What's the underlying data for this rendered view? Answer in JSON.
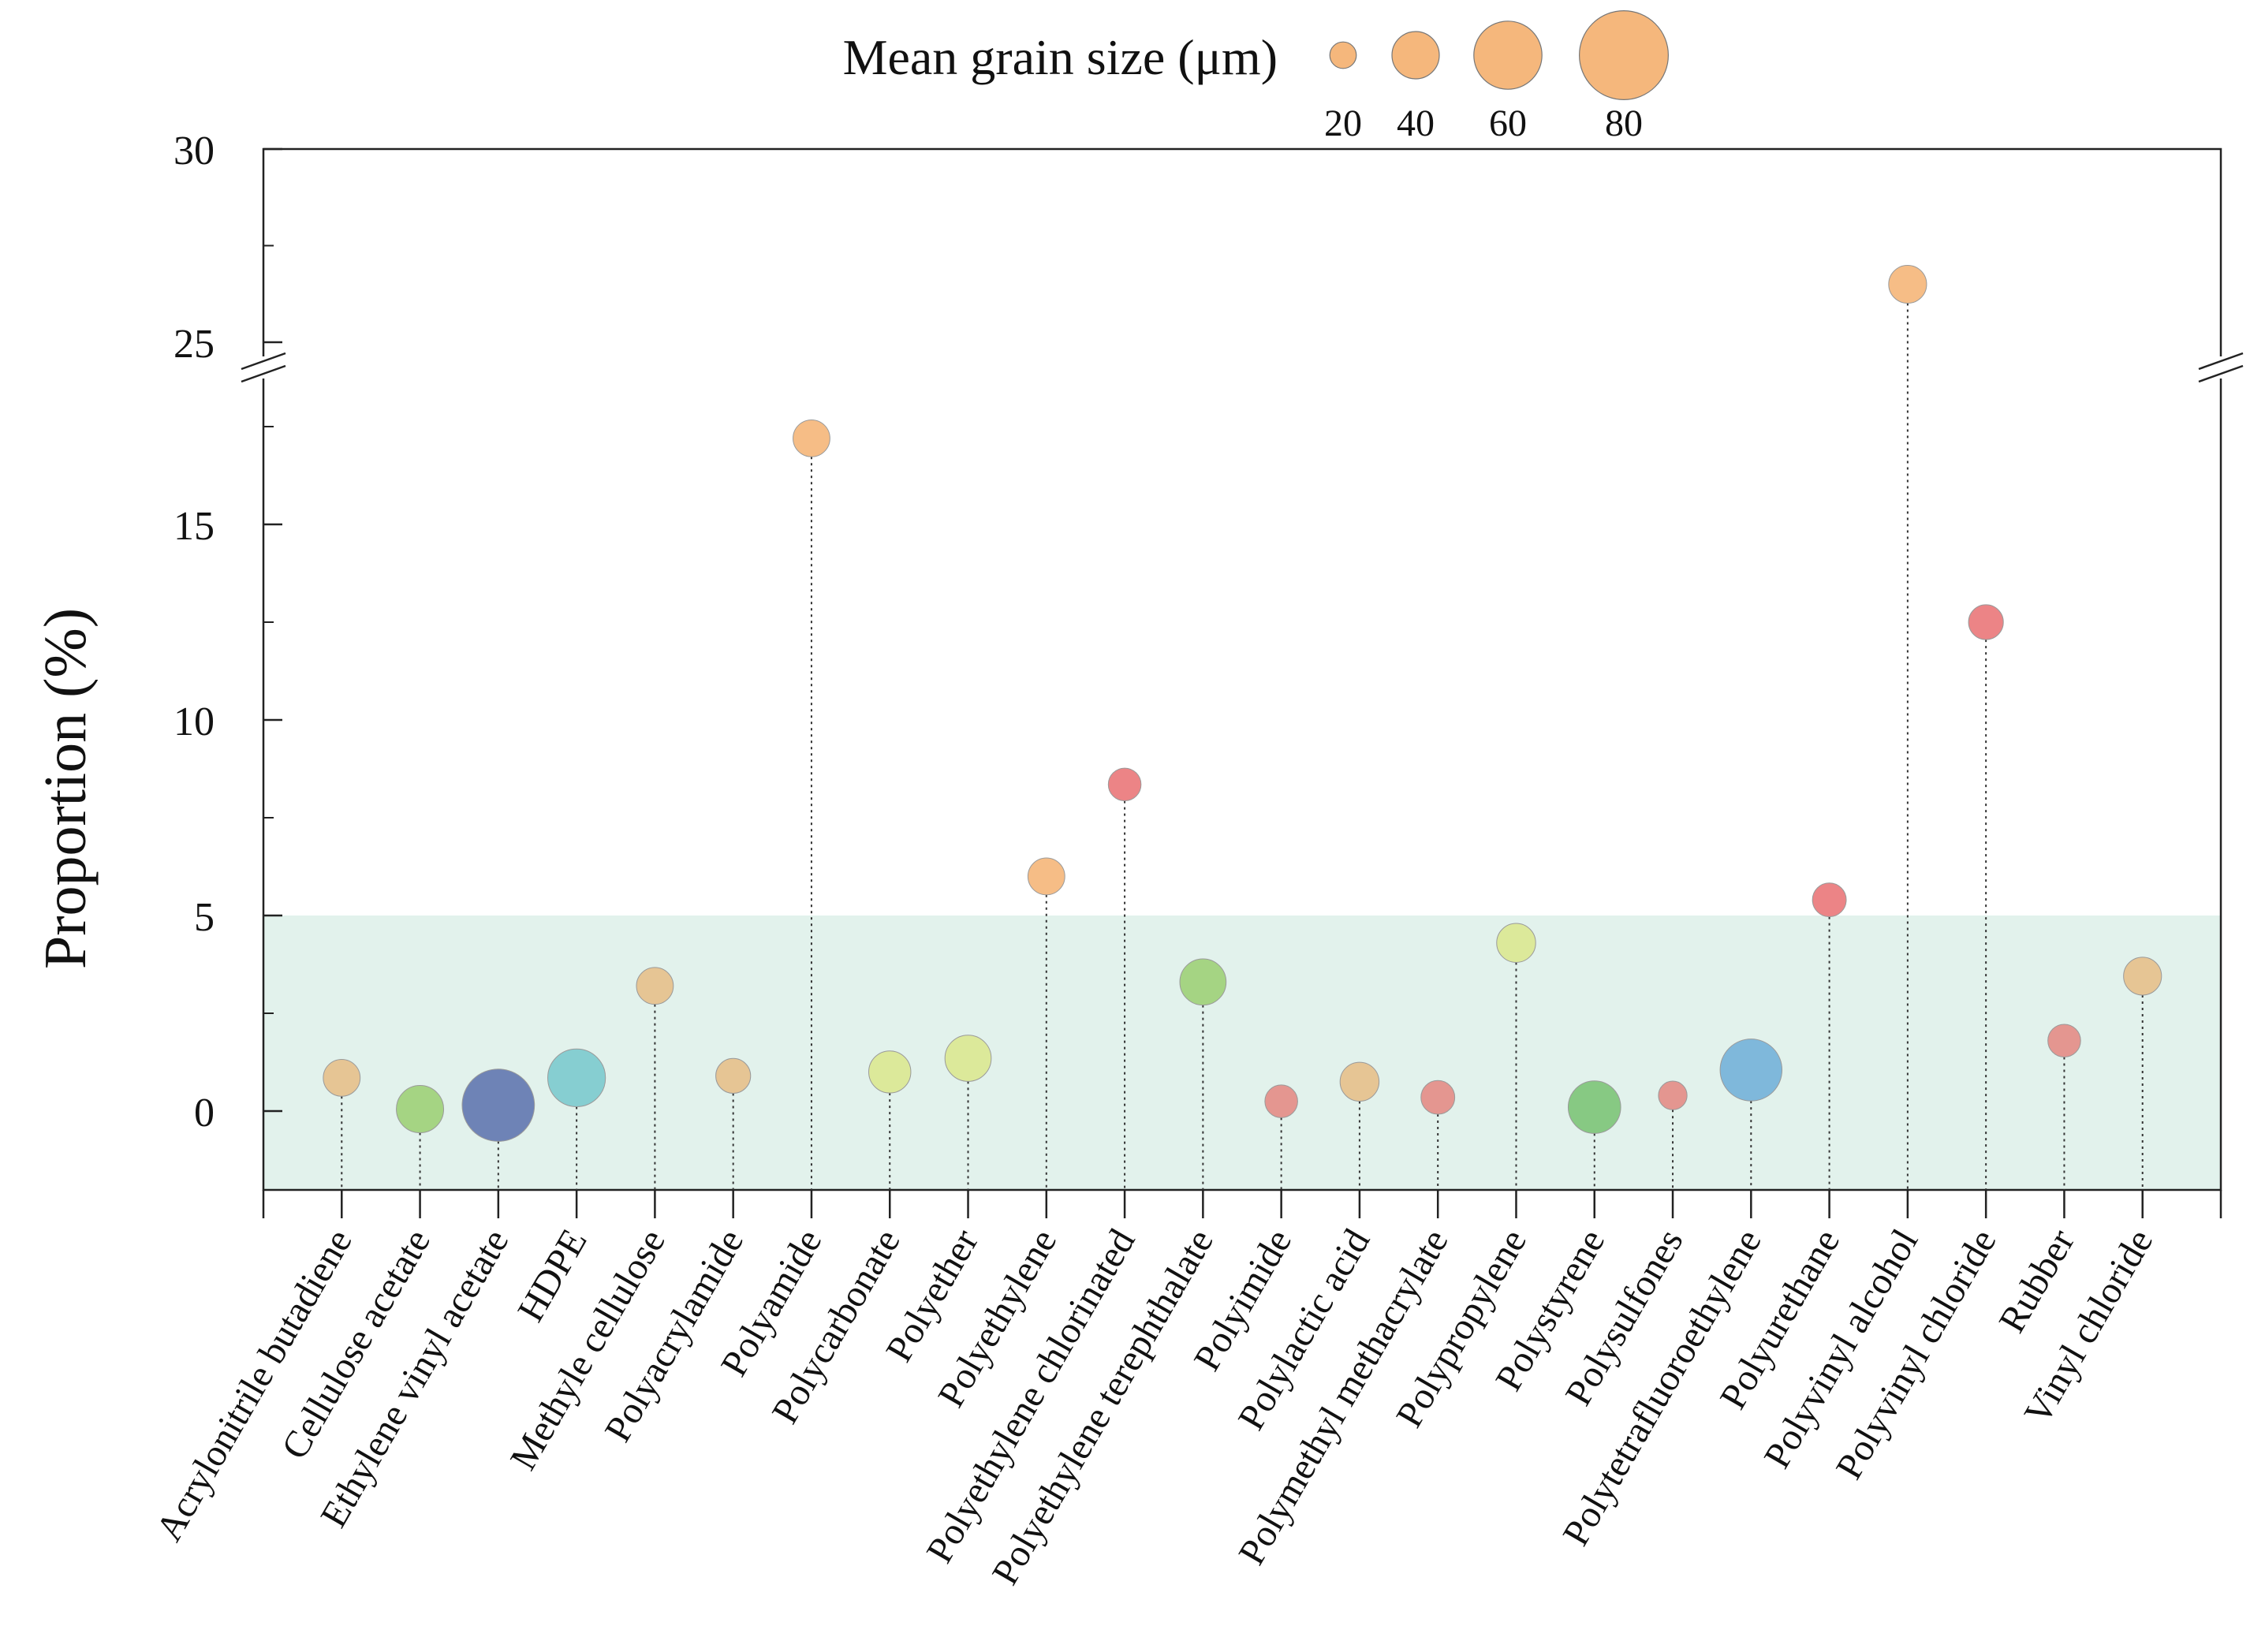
{
  "chart_data": {
    "type": "scatter",
    "subtype": "bubble-lollipop",
    "ylabel": "Proportion (%)",
    "y_tick_labels": [
      "0",
      "5",
      "10",
      "15",
      "25",
      "30"
    ],
    "ylim_lower_segment": [
      -2,
      18.5
    ],
    "ylim_upper_segment": [
      23.5,
      30
    ],
    "axis_break": "between 18.5 and 23.5",
    "threshold_band": {
      "from": -2,
      "to": 5,
      "color": "#e2f2ec"
    },
    "size_legend": {
      "title": "Mean grain size (μm)",
      "values": [
        20,
        40,
        60,
        80
      ],
      "labels": [
        "20",
        "40",
        "60",
        "80"
      ],
      "color": "#f5b77c",
      "placement": "top-center"
    },
    "points": [
      {
        "category": "Acrylonitrile butadiene",
        "value": 0.85,
        "grain_size": 30,
        "color": "#e6c18c"
      },
      {
        "category": "Cellulose acetate",
        "value": 0.05,
        "grain_size": 40,
        "color": "#9fd17a"
      },
      {
        "category": "Ethylene vinyl acetate",
        "value": 0.15,
        "grain_size": 64,
        "color": "#6479b1"
      },
      {
        "category": "HDPE",
        "value": 0.85,
        "grain_size": 50,
        "color": "#7ecbce"
      },
      {
        "category": "Methyle cellulose",
        "value": 3.2,
        "grain_size": 30,
        "color": "#e6c18c"
      },
      {
        "category": "Polyacrylamide",
        "value": 0.9,
        "grain_size": 28,
        "color": "#e6c18c"
      },
      {
        "category": "Polyamide",
        "value": 17.2,
        "grain_size": 30,
        "color": "#f5b77c"
      },
      {
        "category": "Polycarbonate",
        "value": 1.0,
        "grain_size": 35,
        "color": "#dbe893"
      },
      {
        "category": "Polyether",
        "value": 1.35,
        "grain_size": 39,
        "color": "#dbe893"
      },
      {
        "category": "Polyethylene",
        "value": 6.0,
        "grain_size": 30,
        "color": "#f5b77c"
      },
      {
        "category": "Polyethylene chlorinated",
        "value": 8.35,
        "grain_size": 26,
        "color": "#ea7a7c"
      },
      {
        "category": "Polyethylene terephthalate",
        "value": 3.3,
        "grain_size": 39,
        "color": "#9fd17a"
      },
      {
        "category": "Polyimide",
        "value": 0.25,
        "grain_size": 26,
        "color": "#e48e88"
      },
      {
        "category": "Polylactic acid",
        "value": 0.75,
        "grain_size": 32,
        "color": "#e6c18c"
      },
      {
        "category": "Polymethyl methacrylate",
        "value": 0.35,
        "grain_size": 27,
        "color": "#e48e88"
      },
      {
        "category": "Polypropylene",
        "value": 4.3,
        "grain_size": 32,
        "color": "#dbe893"
      },
      {
        "category": "Polystyrene",
        "value": 0.1,
        "grain_size": 45,
        "color": "#7fc679"
      },
      {
        "category": "Polysulfones",
        "value": 0.4,
        "grain_size": 22,
        "color": "#e48e88"
      },
      {
        "category": "Polytetrafluoroethylene",
        "value": 1.05,
        "grain_size": 54,
        "color": "#76b3d9"
      },
      {
        "category": "Polyurethane",
        "value": 5.4,
        "grain_size": 27,
        "color": "#ea7a7c"
      },
      {
        "category": "Polyvinyl alcohol",
        "value": 26.5,
        "grain_size": 31,
        "color": "#f5b77c"
      },
      {
        "category": "Polyvinyl chloride",
        "value": 12.5,
        "grain_size": 28,
        "color": "#ea7a7c"
      },
      {
        "category": "Rubber",
        "value": 1.8,
        "grain_size": 26,
        "color": "#e48e88"
      },
      {
        "category": "Vinyl chloride",
        "value": 3.45,
        "grain_size": 31,
        "color": "#e6c18c"
      }
    ]
  }
}
